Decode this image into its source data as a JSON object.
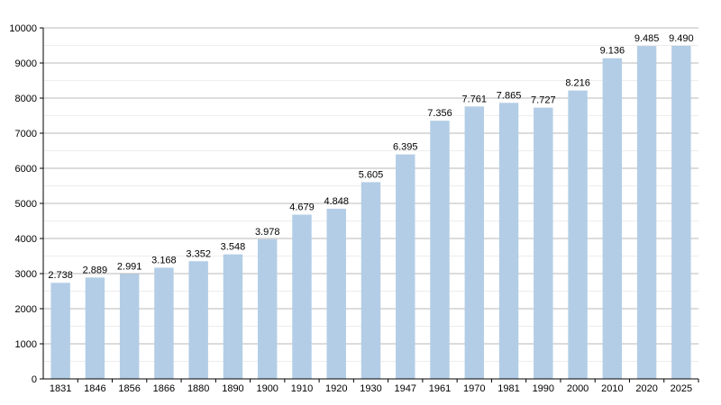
{
  "chart_data": {
    "type": "bar",
    "title": "",
    "xlabel": "",
    "ylabel": "",
    "categories": [
      "1831",
      "1846",
      "1856",
      "1866",
      "1880",
      "1890",
      "1900",
      "1910",
      "1920",
      "1930",
      "1947",
      "1961",
      "1970",
      "1981",
      "1990",
      "2000",
      "2010",
      "2020",
      "2025"
    ],
    "values": [
      2738,
      2889,
      2991,
      3168,
      3352,
      3548,
      3978,
      4679,
      4848,
      5605,
      6395,
      7356,
      7761,
      7865,
      7727,
      8216,
      9136,
      9485,
      9490
    ],
    "value_labels": [
      "2.738",
      "2.889",
      "2.991",
      "3.168",
      "3.352",
      "3.548",
      "3.978",
      "4.679",
      "4.848",
      "5.605",
      "6.395",
      "7.356",
      "7.761",
      "7.865",
      "7.727",
      "8.216",
      "9.136",
      "9.485",
      "9.490"
    ],
    "ylim": [
      0,
      10000
    ],
    "y_ticks": [
      0,
      1000,
      2000,
      3000,
      4000,
      5000,
      6000,
      7000,
      8000,
      9000,
      10000
    ],
    "y_tick_labels": [
      "0",
      "1000",
      "2000",
      "3000",
      "4000",
      "5000",
      "6000",
      "7000",
      "8000",
      "9000",
      "10000"
    ],
    "grid": true,
    "bar_color": "#b3cde6"
  }
}
